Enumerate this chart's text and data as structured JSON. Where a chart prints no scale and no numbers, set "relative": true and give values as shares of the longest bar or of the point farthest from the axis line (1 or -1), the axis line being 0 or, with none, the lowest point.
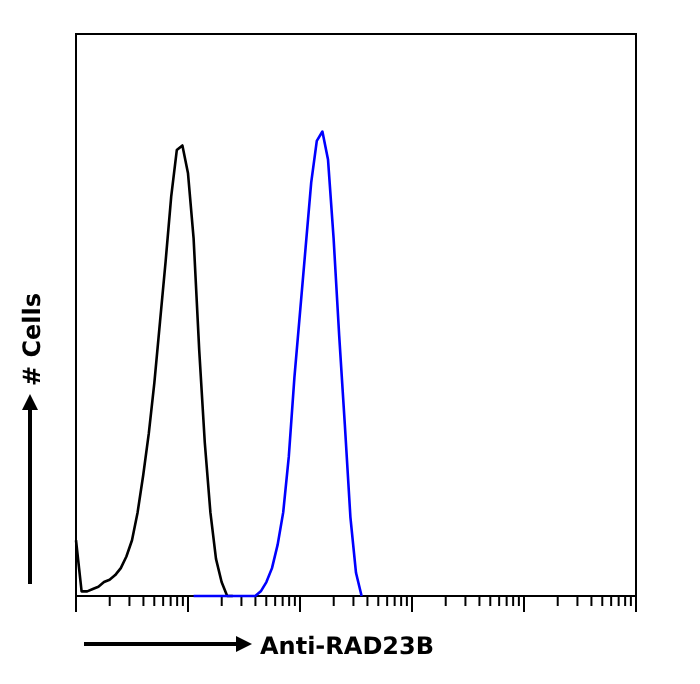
{
  "chart_data": {
    "type": "line",
    "relative": true,
    "xlabel": "Anti-RAD23B",
    "ylabel": "# Cells",
    "categories": [
      null,
      null,
      null,
      null,
      null,
      null,
      null,
      null,
      null,
      null,
      null,
      null,
      null,
      null,
      null,
      null,
      null,
      null,
      null,
      null,
      null,
      null,
      null,
      null,
      null,
      null,
      null,
      null,
      null,
      null,
      null,
      null,
      null,
      null,
      null,
      null,
      null,
      null,
      null,
      null,
      null,
      null,
      null,
      null,
      null,
      null,
      null,
      null,
      null,
      null,
      null,
      null,
      null,
      null,
      null,
      null,
      null,
      null,
      null,
      null,
      null,
      null,
      null,
      null,
      null,
      null,
      null,
      null,
      null,
      null,
      null,
      null,
      null,
      null,
      null,
      null,
      null,
      null,
      null,
      null,
      null,
      null,
      null,
      null,
      null,
      null,
      null,
      null,
      null,
      null,
      null,
      null,
      null,
      null,
      null,
      null,
      null,
      null,
      null,
      null,
      null
    ],
    "series": [
      {
        "color": "#000000",
        "values": [
          0.12,
          0.01,
          0.01,
          0.015,
          0.02,
          0.03,
          0.035,
          0.045,
          0.06,
          0.085,
          0.12,
          0.18,
          0.26,
          0.35,
          0.46,
          0.59,
          0.72,
          0.86,
          0.96,
          0.97,
          0.91,
          0.77,
          0.53,
          0.33,
          0.18,
          0.08,
          0.03,
          0,
          0,
          null,
          null,
          null,
          null,
          null,
          null,
          null,
          null,
          null,
          null,
          null,
          null,
          null,
          null,
          null,
          null,
          null,
          null,
          null,
          null,
          null,
          null,
          null,
          null,
          null,
          null,
          null,
          null,
          null,
          null,
          null,
          null,
          null,
          null,
          null,
          null,
          null,
          null,
          null,
          null,
          null,
          null,
          null,
          null,
          null,
          null,
          null,
          null,
          null,
          null,
          null,
          null,
          null,
          null,
          null,
          null,
          null,
          null,
          null,
          null,
          null,
          null,
          null,
          null,
          null,
          null,
          null,
          null,
          null,
          null,
          null,
          null
        ]
      },
      {
        "color": "#0000ff",
        "values": [
          null,
          null,
          null,
          null,
          null,
          null,
          null,
          null,
          null,
          null,
          null,
          null,
          null,
          null,
          null,
          null,
          null,
          null,
          null,
          null,
          null,
          0,
          0,
          0,
          0,
          0,
          0,
          0,
          0,
          0,
          0,
          0,
          0,
          0.01,
          0.03,
          0.06,
          0.11,
          0.18,
          0.3,
          0.47,
          0.61,
          0.75,
          0.89,
          0.98,
          1,
          0.94,
          0.77,
          0.56,
          0.37,
          0.17,
          0.05,
          0,
          null,
          null,
          null,
          null,
          null,
          null,
          null,
          null,
          null,
          null,
          null,
          null,
          null,
          null,
          null,
          null,
          null,
          null,
          null,
          null,
          null,
          null,
          null,
          null,
          null,
          null,
          null,
          null,
          null,
          null,
          null,
          null,
          null,
          null,
          null,
          null,
          null,
          null,
          null,
          null,
          null,
          null,
          null,
          null,
          null,
          null,
          null,
          null,
          null
        ]
      }
    ]
  }
}
